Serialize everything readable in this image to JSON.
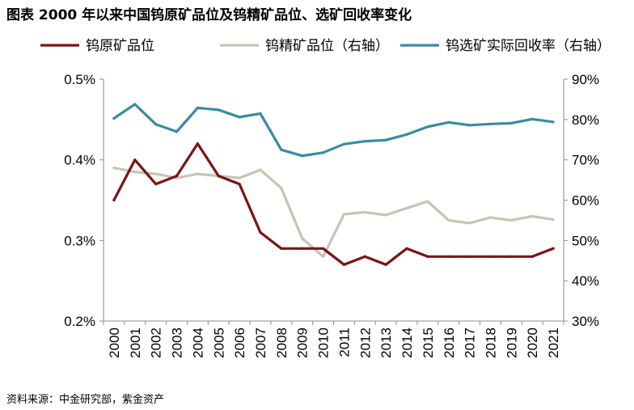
{
  "title": "图表  2000 年以来中国钨原矿品位及钨精矿品位、选矿回收率变化",
  "source": "资料来源：中金研究部，紫金资产",
  "chart_data": {
    "type": "line",
    "categories": [
      "2000",
      "2001",
      "2002",
      "2003",
      "2004",
      "2005",
      "2006",
      "2007",
      "2008",
      "2009",
      "2010",
      "2011",
      "2012",
      "2013",
      "2014",
      "2015",
      "2016",
      "2017",
      "2018",
      "2019",
      "2020",
      "2021"
    ],
    "left_axis": {
      "ylim": [
        0.2,
        0.5
      ],
      "ticks": [
        0.2,
        0.3,
        0.4,
        0.5
      ],
      "tick_labels": [
        "0.2%",
        "0.3%",
        "0.4%",
        "0.5%"
      ]
    },
    "right_axis": {
      "ylim": [
        30,
        90
      ],
      "ticks": [
        30,
        40,
        50,
        60,
        70,
        80,
        90
      ],
      "tick_labels": [
        "30%",
        "40%",
        "50%",
        "60%",
        "70%",
        "80%",
        "90%"
      ]
    },
    "legend_position": "top",
    "series": [
      {
        "name": "钨原矿品位",
        "axis": "left",
        "color": "#7B1416",
        "values": [
          0.35,
          0.4,
          0.37,
          0.38,
          0.42,
          0.38,
          0.37,
          0.31,
          0.29,
          0.29,
          0.29,
          0.27,
          0.28,
          0.27,
          0.29,
          0.28,
          0.28,
          0.28,
          0.28,
          0.28,
          0.28,
          0.29
        ]
      },
      {
        "name": "钨精矿品位（右轴）",
        "axis": "right",
        "color": "#C5C5B6",
        "values": [
          68,
          67,
          66.5,
          65.5,
          66.5,
          66,
          65.5,
          67.5,
          63,
          50.5,
          46,
          56.5,
          57,
          56.3,
          58,
          59.7,
          55,
          54.3,
          55.7,
          55,
          56,
          55.2
        ]
      },
      {
        "name": "钨选矿实际回收率（右轴）",
        "axis": "right",
        "color": "#3B8AA1",
        "values": [
          80.3,
          83.8,
          78.8,
          77,
          82.9,
          82.4,
          80.6,
          81.5,
          72.5,
          71,
          71.8,
          73.9,
          74.6,
          74.9,
          76.3,
          78.2,
          79.3,
          78.6,
          78.9,
          79.1,
          80.1,
          79.4
        ]
      }
    ]
  }
}
